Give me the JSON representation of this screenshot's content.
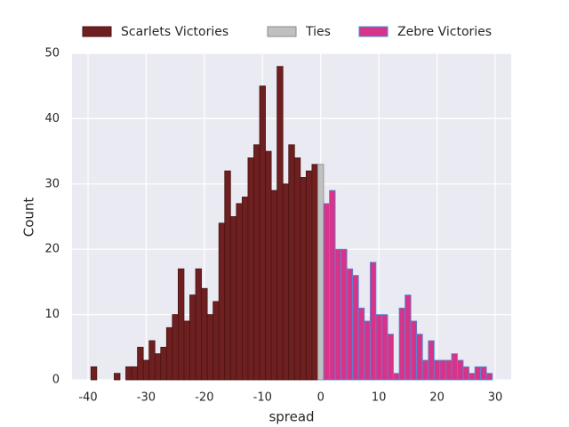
{
  "chart_data": {
    "type": "histogram",
    "xlabel": "spread",
    "ylabel": "Count",
    "series": [
      {
        "name": "Scarlets Victories",
        "color": "#6e1f1f",
        "edgecolor": "#4a1414",
        "bins": [
          -39.5,
          -38.5,
          -37.5,
          -36.5,
          -35.5,
          -34.5,
          -33.5,
          -32.5,
          -31.5,
          -30.5,
          -29.5,
          -28.5,
          -27.5,
          -26.5,
          -25.5,
          -24.5,
          -23.5,
          -22.5,
          -21.5,
          -20.5,
          -19.5,
          -18.5,
          -17.5,
          -16.5,
          -15.5,
          -14.5,
          -13.5,
          -12.5,
          -11.5,
          -10.5,
          -9.5,
          -8.5,
          -7.5,
          -6.5,
          -5.5,
          -4.5,
          -3.5,
          -2.5,
          -1.5,
          -0.5
        ],
        "values": [
          2,
          0,
          0,
          0,
          1,
          0,
          2,
          2,
          5,
          3,
          6,
          4,
          5,
          8,
          10,
          17,
          9,
          13,
          17,
          14,
          10,
          12,
          24,
          32,
          25,
          27,
          28,
          34,
          36,
          45,
          35,
          29,
          48,
          30,
          36,
          34,
          31,
          32,
          33
        ]
      },
      {
        "name": "Ties",
        "color": "#c0c0c0",
        "edgecolor": "#8a8a8a",
        "bins": [
          -0.5,
          0.5
        ],
        "values": [
          33
        ]
      },
      {
        "name": "Zebre Victories",
        "color": "#d6338a",
        "edgecolor": "#4a8fd6",
        "bins": [
          0.5,
          1.5,
          2.5,
          3.5,
          4.5,
          5.5,
          6.5,
          7.5,
          8.5,
          9.5,
          10.5,
          11.5,
          12.5,
          13.5,
          14.5,
          15.5,
          16.5,
          17.5,
          18.5,
          19.5,
          20.5,
          21.5,
          22.5,
          23.5,
          24.5,
          25.5,
          26.5,
          27.5,
          28.5,
          29.5
        ],
        "values": [
          27,
          29,
          20,
          20,
          17,
          16,
          11,
          9,
          18,
          10,
          10,
          7,
          1,
          11,
          13,
          9,
          7,
          3,
          6,
          3,
          3,
          3,
          4,
          3,
          2,
          1,
          2,
          2,
          1
        ]
      }
    ],
    "xlim": [
      -42.75,
      32.75
    ],
    "xticks": [
      -40,
      -30,
      -20,
      -10,
      0,
      10,
      20,
      30
    ],
    "ylim": [
      0,
      50
    ],
    "yticks": [
      0,
      10,
      20,
      30,
      40,
      50
    ],
    "grid": true,
    "legend": "top"
  }
}
